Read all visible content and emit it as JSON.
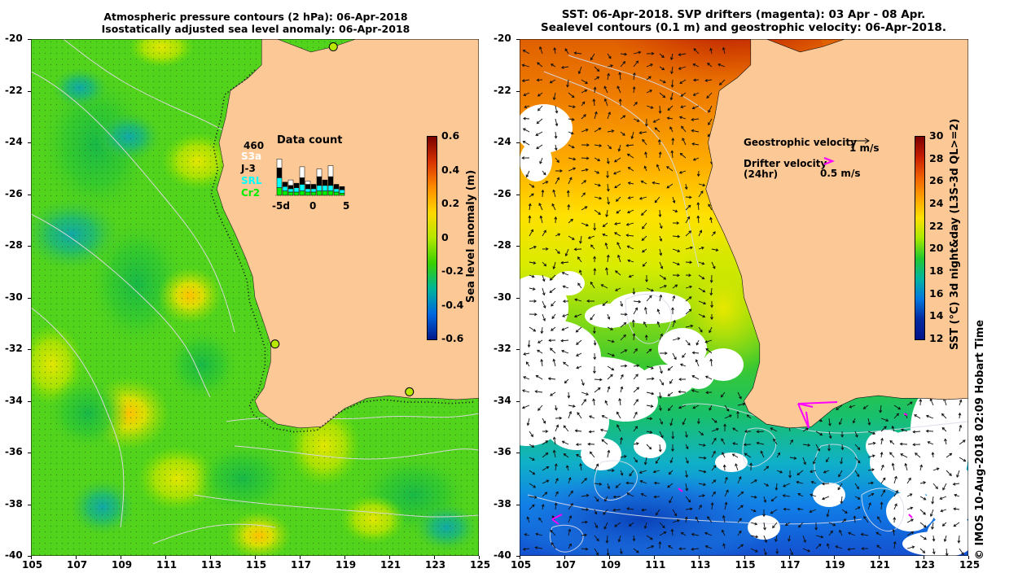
{
  "left_panel": {
    "title_line1": "Atmospheric pressure contours (2 hPa): 06-Apr-2018",
    "title_line2": "Isostatically adjusted sea level anomaly: 06-Apr-2018",
    "lat_ticks": [
      "-20",
      "-22",
      "-24",
      "-26",
      "-28",
      "-30",
      "-32",
      "-34",
      "-36",
      "-38",
      "-40"
    ],
    "lon_ticks": [
      "105",
      "107",
      "109",
      "111",
      "113",
      "115",
      "117",
      "119",
      "121",
      "123",
      "125"
    ],
    "colorbar_label": "Sea level anomaly (m)",
    "colorbar_ticks": [
      "0.6",
      "0.4",
      "0.2",
      "0",
      "-0.2",
      "-0.4",
      "-0.6"
    ],
    "colorbar_colors": [
      "#7a0000",
      "#d83200",
      "#ff8c00",
      "#ffd800",
      "#b4e600",
      "#38d000",
      "#00b49a",
      "#0068e0",
      "#00188c"
    ],
    "data_count": {
      "total": "460",
      "title": "Data count",
      "missions": [
        {
          "name": "S3a",
          "color": "#ffffff"
        },
        {
          "name": "J-3",
          "color": "#000000"
        },
        {
          "name": "SRL",
          "color": "#00ffff"
        },
        {
          "name": "Cr2",
          "color": "#00ee00"
        }
      ],
      "axis_labels": [
        "-5d",
        "0",
        "5"
      ]
    }
  },
  "right_panel": {
    "title_line1": "SST: 06-Apr-2018. SVP drifters (magenta): 03 Apr - 08 Apr.",
    "title_line2": "Sealevel contours (0.1 m) and geostrophic velocity: 06-Apr-2018.",
    "lat_ticks": [
      "-20",
      "-22",
      "-24",
      "-26",
      "-28",
      "-30",
      "-32",
      "-34",
      "-36",
      "-38",
      "-40"
    ],
    "lon_ticks": [
      "105",
      "107",
      "109",
      "111",
      "113",
      "115",
      "117",
      "119",
      "121",
      "123",
      "125"
    ],
    "legend_geo": "Geostrophic velocity",
    "legend_geo_scale": "1 m/s",
    "legend_drifter": "Drifter velocity",
    "legend_drifter_period": "(24hr)",
    "legend_drifter_scale": "0.5 m/s",
    "colorbar_label": "SST (°C) 3d night&day (L3S-3d QL>=2)",
    "colorbar_ticks": [
      "30",
      "28",
      "26",
      "24",
      "22",
      "20",
      "18",
      "16",
      "14",
      "12"
    ],
    "colorbar_colors": [
      "#7a0000",
      "#c81e00",
      "#f06000",
      "#ffa000",
      "#ffe000",
      "#a8e800",
      "#22c830",
      "#00b4a0",
      "#0078e0",
      "#002aa0",
      "#00128a"
    ]
  },
  "credit": "© IMOS 10-Aug-2018 02:09 Hobart Time"
}
